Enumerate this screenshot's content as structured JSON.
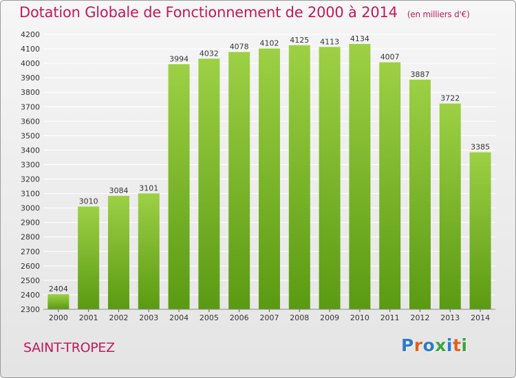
{
  "title": "Dotation Globale de Fonctionnement de 2000 à 2014",
  "unit": "(en milliers d'€)",
  "town": "SAINT-TROPEZ",
  "logo": "Proxiti",
  "colors": {
    "title": "#c2185b",
    "bar_top": "#9dd045",
    "bar_bottom": "#5a9a12",
    "logo": [
      "#2e7bc9",
      "#e2601a",
      "#2e7bc9",
      "#3aa63a",
      "#2e7bc9",
      "#e2601a",
      "#3aa63a"
    ]
  },
  "chart_data": {
    "type": "bar",
    "title": "Dotation Globale de Fonctionnement de 2000 à 2014",
    "xlabel": "",
    "ylabel": "",
    "categories": [
      "2000",
      "2001",
      "2002",
      "2003",
      "2004",
      "2005",
      "2006",
      "2007",
      "2008",
      "2009",
      "2010",
      "2011",
      "2012",
      "2013",
      "2014"
    ],
    "values": [
      2404,
      3010,
      3084,
      3101,
      3994,
      4032,
      4078,
      4102,
      4125,
      4113,
      4134,
      4007,
      3887,
      3722,
      3385
    ],
    "ylim": [
      2300,
      4200
    ],
    "yticks": [
      2300,
      2400,
      2500,
      2600,
      2700,
      2800,
      2900,
      3000,
      3100,
      3200,
      3300,
      3400,
      3500,
      3600,
      3700,
      3800,
      3900,
      4000,
      4100,
      4200
    ],
    "grid": true,
    "data_labels": true
  }
}
